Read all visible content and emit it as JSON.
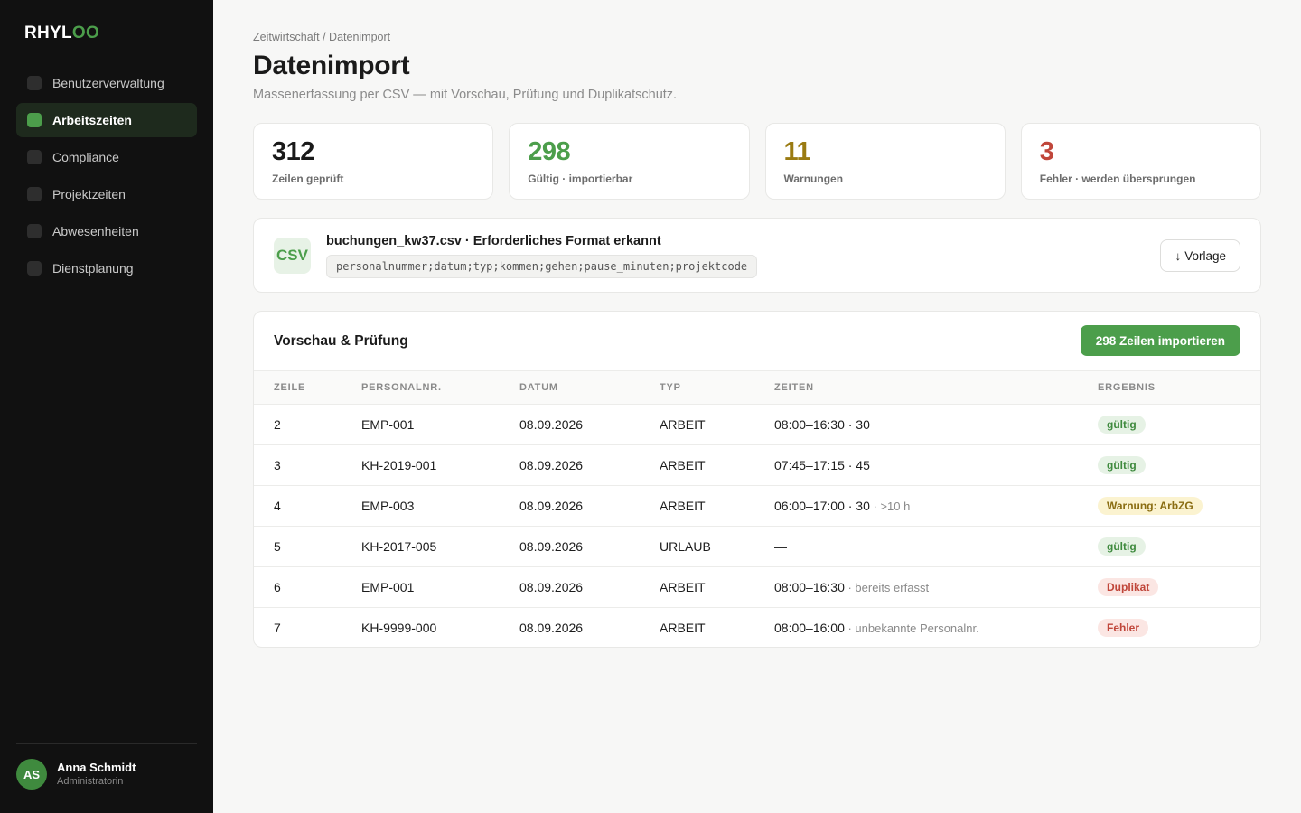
{
  "app": {
    "logo_main": "RHYL",
    "logo_accent": "OO"
  },
  "sidebar": {
    "items": [
      {
        "label": "Benutzerverwaltung",
        "active": false
      },
      {
        "label": "Arbeitszeiten",
        "active": true
      },
      {
        "label": "Compliance",
        "active": false
      },
      {
        "label": "Projektzeiten",
        "active": false
      },
      {
        "label": "Abwesenheiten",
        "active": false
      },
      {
        "label": "Dienstplanung",
        "active": false
      }
    ],
    "user": {
      "initials": "AS",
      "name": "Anna Schmidt",
      "role": "Administratorin"
    }
  },
  "header": {
    "breadcrumb": "Zeitwirtschaft / Datenimport",
    "title": "Datenimport",
    "subtitle": "Massenerfassung per CSV — mit Vorschau, Prüfung und Duplikatschutz."
  },
  "stats": [
    {
      "value": "312",
      "label": "Zeilen geprüft",
      "color": "#1a1a1a"
    },
    {
      "value": "298",
      "label": "Gültig · importierbar",
      "color": "#4c9e4b"
    },
    {
      "value": "11",
      "label": "Warnungen",
      "color": "#9a7b12"
    },
    {
      "value": "3",
      "label": "Fehler · werden übersprungen",
      "color": "#c0463a"
    }
  ],
  "file": {
    "badge": "CSV",
    "title": "buchungen_kw37.csv · Erforderliches Format erkannt",
    "format": "personalnummer;datum;typ;kommen;gehen;pause_minuten;projektcode",
    "template_button": "Vorlage",
    "template_icon": "arrow-down-icon"
  },
  "preview": {
    "title": "Vorschau & Prüfung",
    "import_button": "298 Zeilen importieren",
    "columns": [
      "ZEILE",
      "PERSONALNR.",
      "DATUM",
      "TYP",
      "ZEITEN",
      "ERGEBNIS"
    ],
    "rows": [
      {
        "zeile": "2",
        "personalnr": "EMP-001",
        "datum": "08.09.2026",
        "typ": "ARBEIT",
        "zeiten": "08:00–16:30 · 30",
        "note": "",
        "ergebnis": "gültig",
        "status": "ok"
      },
      {
        "zeile": "3",
        "personalnr": "KH-2019-001",
        "datum": "08.09.2026",
        "typ": "ARBEIT",
        "zeiten": "07:45–17:15 · 45",
        "note": "",
        "ergebnis": "gültig",
        "status": "ok"
      },
      {
        "zeile": "4",
        "personalnr": "EMP-003",
        "datum": "08.09.2026",
        "typ": "ARBEIT",
        "zeiten": "06:00–17:00 · 30",
        "note": " · >10 h",
        "ergebnis": "Warnung: ArbZG",
        "status": "warn"
      },
      {
        "zeile": "5",
        "personalnr": "KH-2017-005",
        "datum": "08.09.2026",
        "typ": "URLAUB",
        "zeiten": "—",
        "note": "",
        "ergebnis": "gültig",
        "status": "ok"
      },
      {
        "zeile": "6",
        "personalnr": "EMP-001",
        "datum": "08.09.2026",
        "typ": "ARBEIT",
        "zeiten": "08:00–16:30",
        "note": " · bereits erfasst",
        "ergebnis": "Duplikat",
        "status": "err"
      },
      {
        "zeile": "7",
        "personalnr": "KH-9999-000",
        "datum": "08.09.2026",
        "typ": "ARBEIT",
        "zeiten": "08:00–16:00",
        "note": " · unbekannte Personalnr.",
        "ergebnis": "Fehler",
        "status": "err"
      }
    ]
  }
}
